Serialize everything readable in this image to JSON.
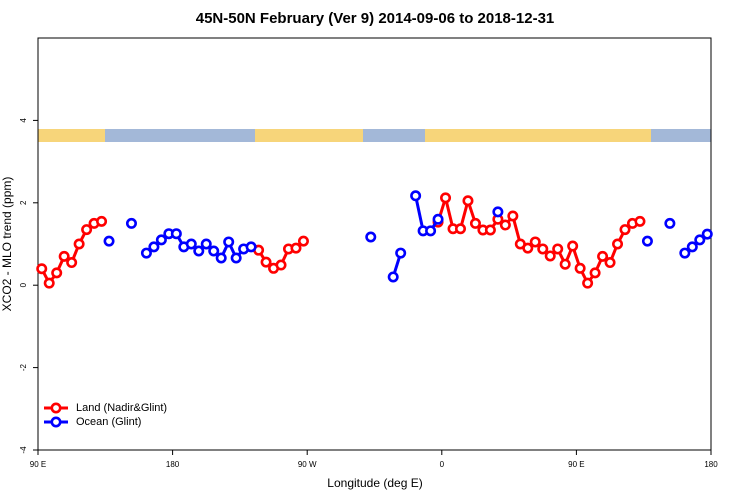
{
  "chart_data": {
    "type": "line",
    "title": "45N-50N February (Ver 9)   2014-09-06 to 2018-12-31",
    "x_label": "Longitude (deg E)",
    "y_label": "XCO2 - MLO trend (ppm)",
    "x": [
      92.5,
      97.5,
      102.5,
      107.5,
      112.5,
      117.5,
      122.5,
      127.5,
      132.5,
      137.5,
      142.5,
      147.5,
      152.5,
      157.5,
      162.5,
      167.5,
      172.5,
      177.5,
      182.5,
      187.5,
      192.5,
      197.5,
      202.5,
      207.5,
      212.5,
      217.5,
      222.5,
      227.5,
      232.5,
      237.5,
      242.5,
      247.5,
      252.5,
      257.5,
      262.5,
      267.5,
      272.5,
      277.5,
      282.5,
      287.5,
      292.5,
      297.5,
      302.5,
      307.5,
      312.5,
      317.5,
      322.5,
      327.5,
      332.5,
      337.5,
      342.5,
      347.5,
      352.5,
      357.5,
      362.5,
      367.5,
      372.5,
      377.5,
      382.5,
      387.5,
      392.5,
      397.5,
      402.5,
      407.5,
      412.5,
      417.5,
      422.5,
      427.5,
      432.5,
      437.5,
      442.5,
      447.5,
      452.5,
      457.5,
      462.5,
      467.5,
      472.5,
      477.5,
      482.5,
      487.5,
      492.5,
      497.5,
      502.5,
      507.5,
      512.5,
      517.5,
      522.5,
      527.5,
      532.5,
      537.5
    ],
    "series": [
      {
        "name": "Land (Nadir&Glint)",
        "color": "#ff0000",
        "values": [
          0.4,
          0.05,
          0.3,
          0.7,
          0.55,
          1.0,
          1.35,
          1.5,
          1.55,
          null,
          null,
          null,
          null,
          null,
          null,
          null,
          null,
          null,
          null,
          null,
          null,
          null,
          null,
          null,
          null,
          null,
          null,
          null,
          null,
          0.85,
          0.56,
          0.41,
          0.49,
          0.88,
          0.9,
          1.07,
          null,
          null,
          null,
          null,
          null,
          null,
          null,
          null,
          null,
          null,
          null,
          null,
          null,
          null,
          null,
          null,
          null,
          1.53,
          2.12,
          1.37,
          1.37,
          2.05,
          1.5,
          1.34,
          1.34,
          1.6,
          1.46,
          1.68,
          1.0,
          0.9,
          1.05,
          0.88,
          0.71,
          0.88,
          0.51,
          0.95,
          0.41,
          0.05,
          0.3,
          0.7,
          0.55,
          1.0,
          1.35,
          1.5,
          1.55,
          null,
          null,
          null,
          null,
          null,
          null,
          null,
          null,
          null
        ]
      },
      {
        "name": "Ocean (Glint)",
        "color": "#0000ff",
        "values": [
          null,
          null,
          null,
          null,
          null,
          null,
          null,
          null,
          null,
          1.07,
          null,
          null,
          1.5,
          null,
          0.78,
          0.93,
          1.1,
          1.25,
          1.25,
          0.93,
          1.0,
          0.83,
          1.0,
          0.83,
          0.66,
          1.05,
          0.66,
          0.88,
          0.93,
          null,
          null,
          null,
          null,
          null,
          null,
          null,
          null,
          null,
          null,
          null,
          null,
          null,
          null,
          null,
          1.17,
          null,
          null,
          0.2,
          0.78,
          null,
          2.17,
          1.32,
          1.32,
          1.6,
          null,
          null,
          null,
          null,
          null,
          null,
          null,
          1.78,
          null,
          null,
          null,
          null,
          null,
          null,
          null,
          null,
          null,
          null,
          null,
          null,
          null,
          null,
          null,
          null,
          null,
          null,
          null,
          1.07,
          null,
          null,
          1.5,
          null,
          0.78,
          0.93,
          1.1,
          1.24
        ]
      }
    ],
    "xlim": [
      90,
      540
    ],
    "xticks": [
      {
        "value": 90,
        "label": "90 E"
      },
      180,
      {
        "value": 270,
        "label": "90 W"
      },
      {
        "value": 360,
        "label": "0"
      },
      {
        "value": 450,
        "label": "90 E"
      },
      {
        "value": 540,
        "label": "180"
      }
    ],
    "ylim": [
      -4,
      6
    ],
    "yticks": [
      -4,
      -2,
      0,
      2,
      4
    ],
    "legend": "bottom-left"
  }
}
